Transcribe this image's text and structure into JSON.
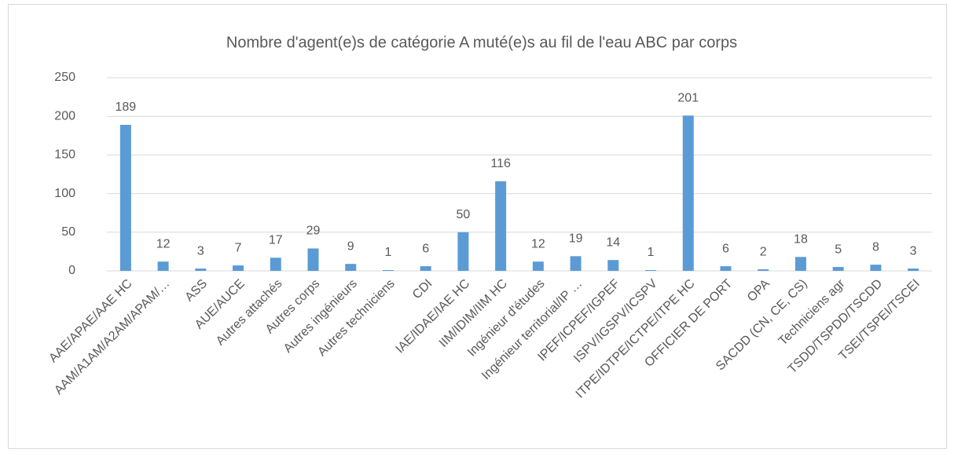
{
  "chart_data": {
    "type": "bar",
    "title": "Nombre d'agent(e)s de catégorie A muté(e)s au fil de l'eau ABC par corps",
    "categories": [
      "AAE/APAE/AAE HC",
      "AAM/A1AM/A2AM/APAM/…",
      "ASS",
      "AUE/AUCE",
      "Autres attachés",
      "Autres corps",
      "Autres ingénieurs",
      "Autres techniciens",
      "CDI",
      "IAE/IDAE/IAE HC",
      "IIM/IDIM/IIM HC",
      "Ingénieur d'études",
      "Ingénieur territorial/IP …",
      "IPEF/ICPEF/IGPEF",
      "ISPV/IGSPV/ICSPV",
      "ITPE/IDTPE/ICTPE/ITPE HC",
      "OFFICIER DE PORT",
      "OPA",
      "SACDD (CN, CE, CS)",
      "Techniciens agr",
      "TSDD/TSPDD/TSCDD",
      "TSEI/TSPEI/TSCEI"
    ],
    "values": [
      189,
      12,
      3,
      7,
      17,
      29,
      9,
      1,
      6,
      50,
      116,
      12,
      19,
      14,
      1,
      201,
      6,
      2,
      18,
      5,
      8,
      3
    ],
    "color": "#5b9bd5",
    "ylim": [
      0,
      250
    ],
    "yticks": [
      0,
      50,
      100,
      150,
      200,
      250
    ],
    "grid": true
  }
}
